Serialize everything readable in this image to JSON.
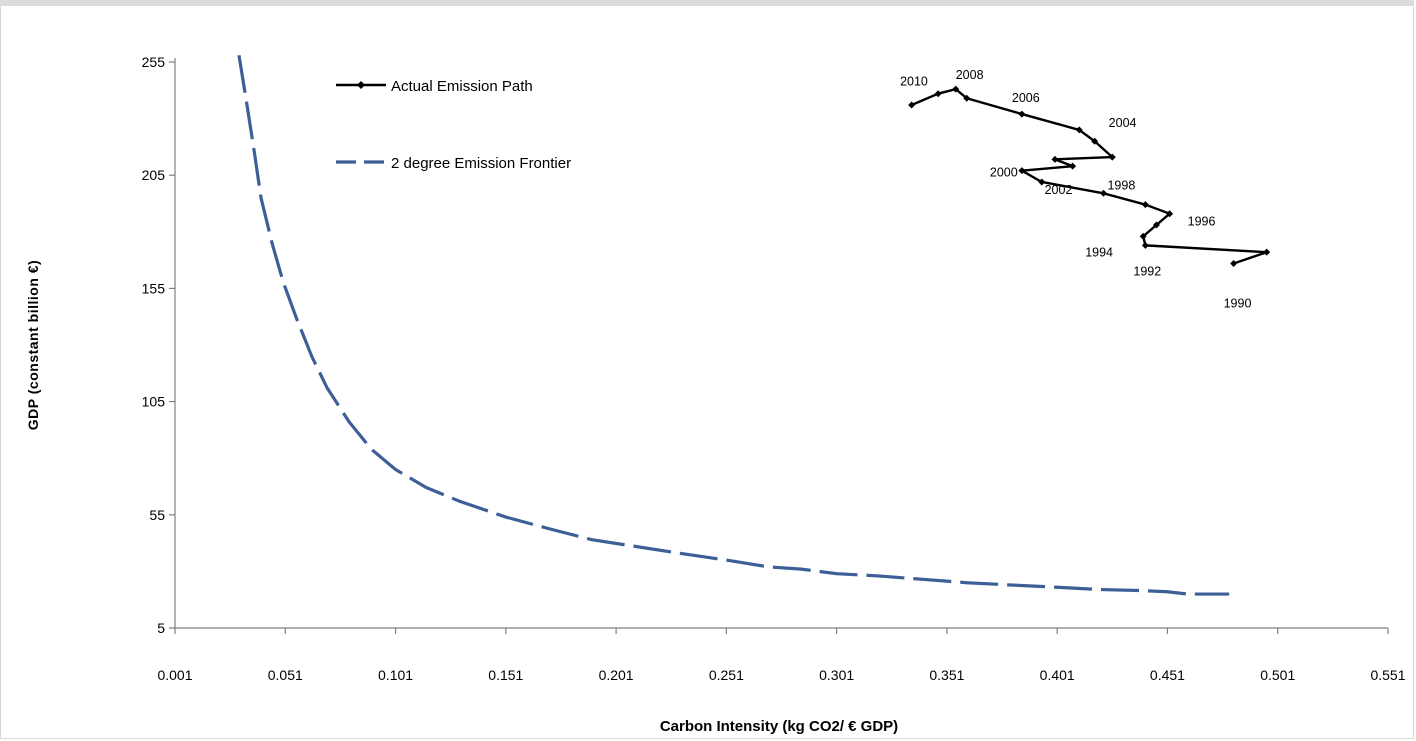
{
  "chart_data": {
    "type": "line",
    "title": "",
    "xlabel": "Carbon Intensity (kg CO2/  € GDP)",
    "ylabel": "GDP   (constant billion €)",
    "xlim": [
      0.001,
      0.551
    ],
    "ylim": [
      5,
      255
    ],
    "x_ticks": [
      "0.001",
      "0.051",
      "0.101",
      "0.151",
      "0.201",
      "0.251",
      "0.301",
      "0.351",
      "0.401",
      "0.451",
      "0.501",
      "0.551"
    ],
    "y_ticks": [
      "5",
      "55",
      "105",
      "155",
      "205",
      "255"
    ],
    "grid": false,
    "legend_position": "top-left",
    "series": [
      {
        "name": "Actual Emission Path",
        "color": "#000000",
        "style": "solid-with-markers",
        "points": [
          {
            "x": 0.481,
            "y": 166,
            "label": "1990"
          },
          {
            "x": 0.496,
            "y": 171,
            "label": ""
          },
          {
            "x": 0.441,
            "y": 174,
            "label": "1992"
          },
          {
            "x": 0.44,
            "y": 178,
            "label": "1994"
          },
          {
            "x": 0.446,
            "y": 183,
            "label": ""
          },
          {
            "x": 0.452,
            "y": 188,
            "label": "1996"
          },
          {
            "x": 0.441,
            "y": 192,
            "label": ""
          },
          {
            "x": 0.422,
            "y": 197,
            "label": "1998"
          },
          {
            "x": 0.394,
            "y": 202,
            "label": ""
          },
          {
            "x": 0.385,
            "y": 207,
            "label": "2000"
          },
          {
            "x": 0.408,
            "y": 209,
            "label": "2002"
          },
          {
            "x": 0.4,
            "y": 212,
            "label": ""
          },
          {
            "x": 0.426,
            "y": 213,
            "label": ""
          },
          {
            "x": 0.418,
            "y": 220,
            "label": "2004"
          },
          {
            "x": 0.411,
            "y": 225,
            "label": ""
          },
          {
            "x": 0.385,
            "y": 232,
            "label": "2006"
          },
          {
            "x": 0.36,
            "y": 239,
            "label": ""
          },
          {
            "x": 0.355,
            "y": 243,
            "label": "2008"
          },
          {
            "x": 0.347,
            "y": 241,
            "label": "2010"
          },
          {
            "x": 0.335,
            "y": 236,
            "label": ""
          }
        ]
      },
      {
        "name": "2 degree Emission Frontier",
        "color": "#3d5f97",
        "style": "dashed",
        "points": [
          {
            "x": 0.03,
            "y": 258
          },
          {
            "x": 0.033,
            "y": 240
          },
          {
            "x": 0.037,
            "y": 215
          },
          {
            "x": 0.04,
            "y": 195
          },
          {
            "x": 0.045,
            "y": 175
          },
          {
            "x": 0.05,
            "y": 158
          },
          {
            "x": 0.056,
            "y": 142
          },
          {
            "x": 0.063,
            "y": 125
          },
          {
            "x": 0.07,
            "y": 111
          },
          {
            "x": 0.08,
            "y": 96
          },
          {
            "x": 0.09,
            "y": 84
          },
          {
            "x": 0.101,
            "y": 75
          },
          {
            "x": 0.115,
            "y": 67
          },
          {
            "x": 0.13,
            "y": 61
          },
          {
            "x": 0.151,
            "y": 54
          },
          {
            "x": 0.17,
            "y": 49
          },
          {
            "x": 0.19,
            "y": 44
          },
          {
            "x": 0.21,
            "y": 41
          },
          {
            "x": 0.23,
            "y": 38
          },
          {
            "x": 0.251,
            "y": 35
          },
          {
            "x": 0.27,
            "y": 32
          },
          {
            "x": 0.285,
            "y": 31
          },
          {
            "x": 0.301,
            "y": 29
          },
          {
            "x": 0.32,
            "y": 28
          },
          {
            "x": 0.34,
            "y": 26.5
          },
          {
            "x": 0.36,
            "y": 25
          },
          {
            "x": 0.38,
            "y": 24
          },
          {
            "x": 0.401,
            "y": 23
          },
          {
            "x": 0.42,
            "y": 22
          },
          {
            "x": 0.44,
            "y": 21.5
          },
          {
            "x": 0.451,
            "y": 21
          },
          {
            "x": 0.46,
            "y": 20
          },
          {
            "x": 0.479,
            "y": 20
          }
        ]
      }
    ]
  }
}
